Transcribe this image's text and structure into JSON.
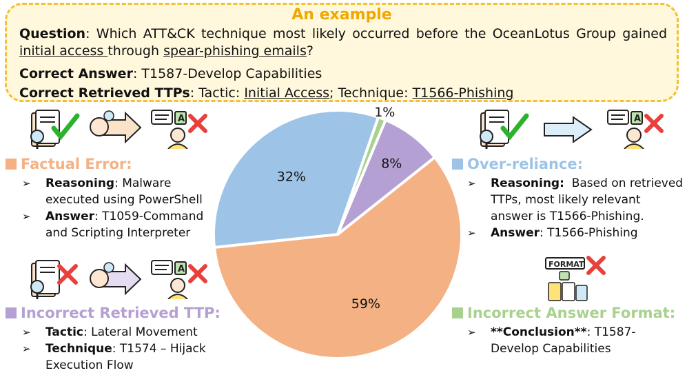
{
  "example": {
    "title": "An example",
    "question_label": "Question",
    "question_pre": "Which ATT&CK technique most likely occurred before the OceanLotus Group gained ",
    "question_u1": "initial access ",
    "question_mid": "through ",
    "question_u2": "spear-phishing emails",
    "question_post": "?",
    "answer_label": "Correct Answer",
    "answer": "T1587-Develop Capabilities",
    "ttps_label": "Correct Retrieved TTPs",
    "ttps_tactic_pre": "Tactic: ",
    "ttps_tactic": "Initial Access",
    "ttps_tech_pre": "; Technique: ",
    "ttps_technique": "T1566-Phishing"
  },
  "colors": {
    "factual": "#f4b183",
    "over_reliance": "#9dc3e6",
    "incorrect_ttp": "#b4a0d2",
    "format": "#a9d18e",
    "frame": "#f2c12e",
    "check": "#2db22d",
    "cross": "#e8403c"
  },
  "sections": {
    "factual": {
      "title": "Factual Error:",
      "b1_label": "Reasoning",
      "b1_text": ": Malware executed using PowerShell",
      "b2_label": "Answer",
      "b2_text": ": T1059-Command and Scripting Interpreter"
    },
    "over": {
      "title": "Over-reliance:",
      "b1_label": "Reasoning:",
      "b1_text": "  Based on retrieved TTPs, most likely relevant answer is T1566-Phishing.",
      "b2_label": "Answer",
      "b2_text": ": T1566-Phishing"
    },
    "ttp": {
      "title": "Incorrect Retrieved TTP:",
      "b1_label": "Tactic",
      "b1_text": ": Lateral Movement",
      "b2_label": "Technique",
      "b2_text": ": T1574 – Hijack Execution Flow"
    },
    "format": {
      "title": "Incorrect Answer Format:",
      "b1_label": "**Conclusion**",
      "b1_text": ": T1587-Develop Capabilities",
      "icon_label": "FORMAT"
    }
  },
  "icons": [
    "document-check-icon",
    "brain-arrow-icon",
    "person-cross-icon",
    "format-cross-icon"
  ],
  "chart_data": {
    "type": "pie",
    "labels": [
      "59%",
      "32%",
      "1%",
      "8%"
    ],
    "values": [
      59,
      32,
      1,
      8
    ],
    "colors": [
      "#f4b183",
      "#9dc3e6",
      "#a9d18e",
      "#b4a0d2"
    ],
    "categories": [
      "Factual Error",
      "Over-reliance",
      "Incorrect Answer Format",
      "Incorrect Retrieved TTP"
    ]
  }
}
